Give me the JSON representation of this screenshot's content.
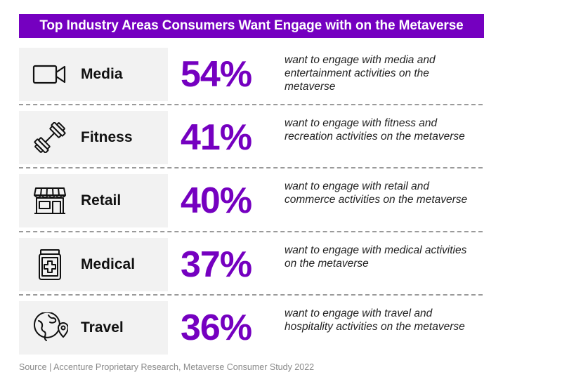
{
  "title": "Top Industry Areas Consumers Want Engage with on the Metaverse",
  "source": "Source | Accenture Proprietary Research, Metaverse Consumer Study 2022",
  "colors": {
    "accent": "#7500c0",
    "label_bg": "#f2f2f2",
    "divider": "#9a9a9a"
  },
  "chart_data": {
    "type": "table",
    "title": "Top Industry Areas Consumers Want Engage with on the Metaverse",
    "columns": [
      "category",
      "percent",
      "description"
    ],
    "rows": [
      {
        "category": "Media",
        "icon": "video-camera-icon",
        "value": 54,
        "percent": "54%",
        "description": "want to engage with media and entertainment activities on the metaverse"
      },
      {
        "category": "Fitness",
        "icon": "dumbbell-icon",
        "value": 41,
        "percent": "41%",
        "description": "want to engage with fitness and recreation activities on the metaverse"
      },
      {
        "category": "Retail",
        "icon": "storefront-icon",
        "value": 40,
        "percent": "40%",
        "description": "want to engage with retail and commerce activities on the metaverse"
      },
      {
        "category": "Medical",
        "icon": "medicine-jar-icon",
        "value": 37,
        "percent": "37%",
        "description": "want to engage with medical activities on the metaverse"
      },
      {
        "category": "Travel",
        "icon": "globe-location-icon",
        "value": 36,
        "percent": "36%",
        "description": "want to engage with travel and hospitality activities on the metaverse"
      }
    ]
  }
}
